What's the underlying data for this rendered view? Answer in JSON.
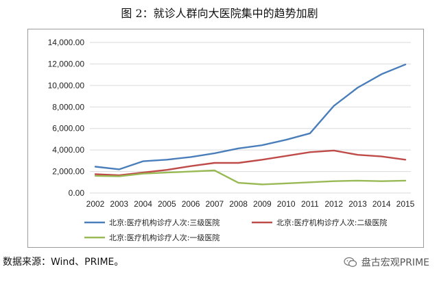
{
  "figure": {
    "title": "图 2：就诊人群向大医院集中的趋势加剧",
    "source": "数据来源：Wind、PRIME。",
    "watermark": "盘古宏观PRIME",
    "watermark_icon": "wechat-icon"
  },
  "chart_data": {
    "type": "line",
    "title": "",
    "xlabel": "",
    "ylabel": "",
    "x": [
      "2002",
      "2003",
      "2004",
      "2005",
      "2006",
      "2007",
      "2008",
      "2009",
      "2010",
      "2011",
      "2012",
      "2013",
      "2014",
      "2015"
    ],
    "ylim": [
      0,
      14000
    ],
    "yticks": [
      0,
      2000,
      4000,
      6000,
      8000,
      10000,
      12000,
      14000
    ],
    "ytick_labels": [
      "0.00",
      "2,000.00",
      "4,000.00",
      "6,000.00",
      "8,000.00",
      "10,000.00",
      "12,000.00",
      "14,000.00"
    ],
    "grid": true,
    "legend_position": "bottom",
    "series": [
      {
        "name": "北京:医疗机构诊疗人次:三级医院",
        "color": "#4A7EBB",
        "values": [
          2450,
          2200,
          2950,
          3100,
          3350,
          3700,
          4150,
          4450,
          4950,
          5550,
          8100,
          9800,
          11050,
          11950
        ]
      },
      {
        "name": "北京:医疗机构诊疗人次:二级医院",
        "color": "#BE4B48",
        "values": [
          1750,
          1650,
          1900,
          2150,
          2500,
          2800,
          2800,
          3100,
          3450,
          3800,
          3950,
          3550,
          3400,
          3100
        ]
      },
      {
        "name": "北京:医疗机构诊疗人次:一级医院",
        "color": "#98B954",
        "values": [
          1600,
          1550,
          1800,
          1900,
          2000,
          2100,
          950,
          800,
          900,
          1000,
          1100,
          1150,
          1100,
          1150
        ]
      }
    ]
  }
}
